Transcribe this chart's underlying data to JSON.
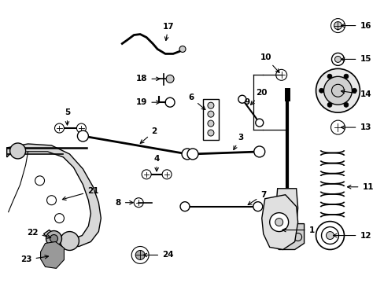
{
  "background_color": "#ffffff",
  "fig_width": 4.89,
  "fig_height": 3.6,
  "dpi": 100
}
